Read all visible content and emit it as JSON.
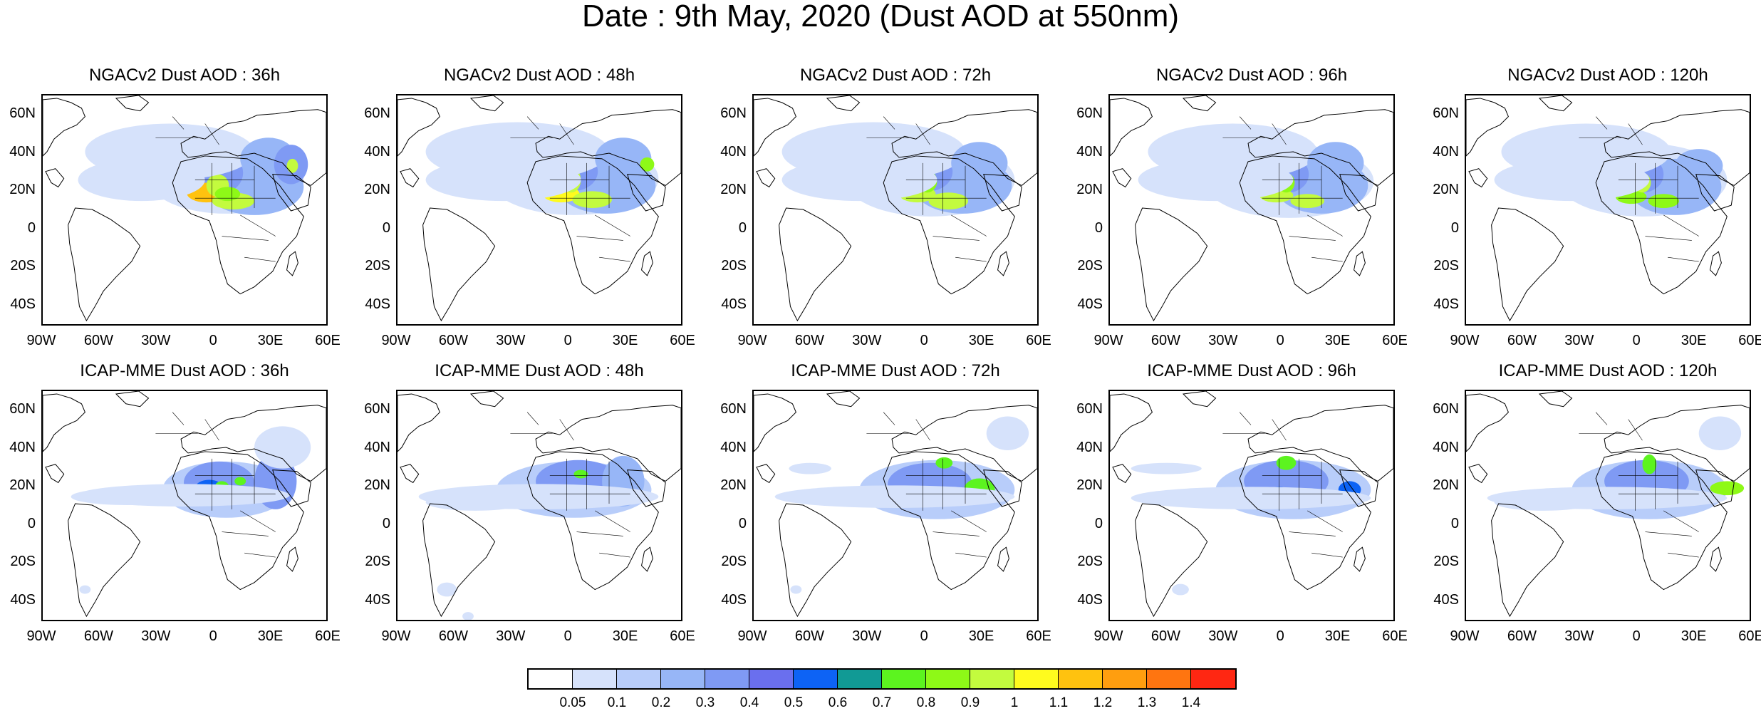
{
  "title": "Date : 9th May, 2020 (Dust AOD at 550nm)",
  "lat_ticks": [
    "60N",
    "40N",
    "20N",
    "0",
    "20S",
    "40S"
  ],
  "lon_ticks": [
    "90W",
    "60W",
    "30W",
    "0",
    "30E",
    "60E"
  ],
  "rows": [
    {
      "panels": [
        {
          "title": "NGACv2 Dust AOD : 36h"
        },
        {
          "title": "NGACv2 Dust AOD : 48h"
        },
        {
          "title": "NGACv2 Dust AOD : 72h"
        },
        {
          "title": "NGACv2 Dust AOD : 96h"
        },
        {
          "title": "NGACv2 Dust AOD : 120h"
        }
      ]
    },
    {
      "panels": [
        {
          "title": "ICAP-MME Dust AOD : 36h"
        },
        {
          "title": "ICAP-MME Dust AOD : 48h"
        },
        {
          "title": "ICAP-MME Dust AOD : 72h"
        },
        {
          "title": "ICAP-MME Dust AOD : 96h"
        },
        {
          "title": "ICAP-MME Dust AOD : 120h"
        }
      ]
    }
  ],
  "colorbar": {
    "labels": [
      "0.05",
      "0.1",
      "0.2",
      "0.3",
      "0.4",
      "0.5",
      "0.6",
      "0.7",
      "0.8",
      "0.9",
      "1",
      "1.1",
      "1.2",
      "1.3",
      "1.4"
    ],
    "colors": [
      "#ffffff",
      "#d6e2fb",
      "#b8cdfa",
      "#97b6f7",
      "#7f9af4",
      "#6a6fee",
      "#0d63f5",
      "#119a95",
      "#5cf41f",
      "#8ef917",
      "#c3fb3e",
      "#fffb1e",
      "#ffc20f",
      "#ff9e0f",
      "#ff7510",
      "#ff2712"
    ]
  }
}
